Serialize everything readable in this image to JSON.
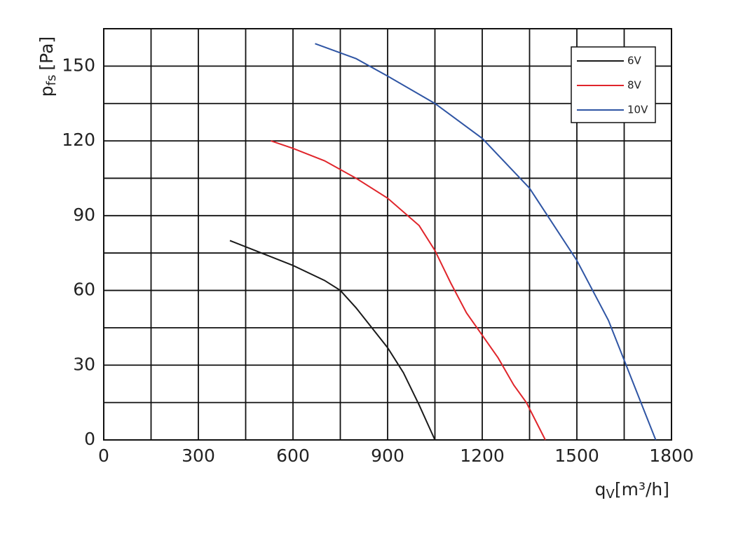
{
  "chart_data": {
    "type": "line",
    "xlabel": "q",
    "xlabel_sub": "V",
    "xlabel_unit": "[m³/h]",
    "ylabel": "p",
    "ylabel_sub": "fs",
    "ylabel_unit": "[Pa]",
    "xlim": [
      0,
      1800
    ],
    "xticks": [
      0,
      300,
      600,
      900,
      1200,
      1500,
      1800
    ],
    "xminor_ticks": [
      150,
      450,
      750,
      1050,
      1350,
      1650
    ],
    "ylim": [
      0,
      165
    ],
    "yticks": [
      0,
      30,
      60,
      90,
      120,
      150
    ],
    "yminor_ticks": [
      15,
      45,
      75,
      105,
      135,
      165
    ],
    "grid": true,
    "legend": "top-right",
    "series": [
      {
        "name": "6V",
        "color": "#1a1a1a",
        "x": [
          400,
          500,
          600,
          700,
          750,
          800,
          850,
          900,
          950,
          1000,
          1050
        ],
        "values": [
          80,
          75,
          70,
          64,
          60,
          53,
          45,
          37,
          27,
          14,
          0
        ]
      },
      {
        "name": "8V",
        "color": "#e0252b",
        "x": [
          530,
          600,
          700,
          800,
          900,
          1000,
          1050,
          1100,
          1150,
          1200,
          1250,
          1300,
          1340,
          1400
        ],
        "values": [
          120,
          117,
          112,
          105,
          97,
          86,
          76,
          63,
          51,
          42,
          33,
          22,
          15,
          0
        ]
      },
      {
        "name": "10V",
        "color": "#2f55a4",
        "x": [
          670,
          800,
          900,
          1050,
          1200,
          1350,
          1500,
          1600,
          1650,
          1700,
          1750
        ],
        "values": [
          159,
          153,
          146,
          135,
          121,
          101,
          72,
          48,
          32,
          16,
          0
        ]
      }
    ]
  }
}
